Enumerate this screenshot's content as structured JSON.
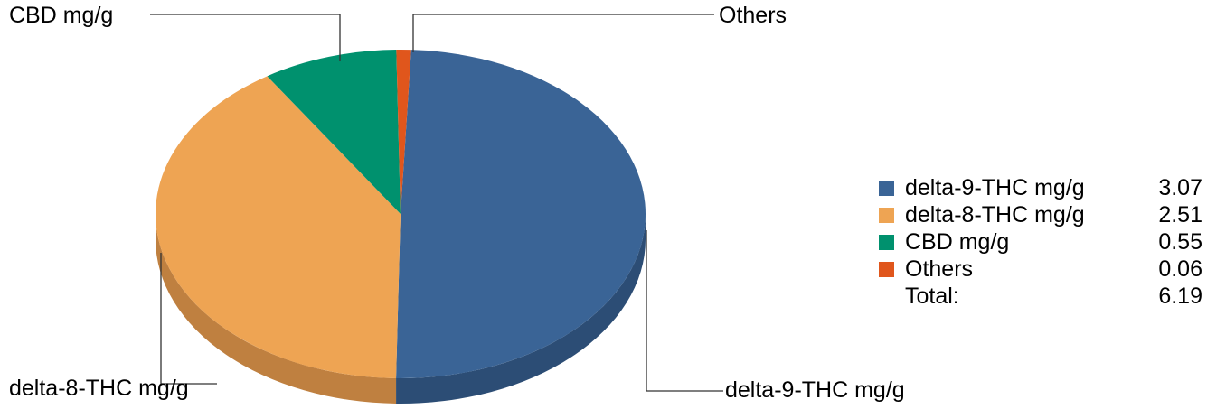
{
  "chart_data": {
    "type": "pie",
    "style": "3d-tilted",
    "title": "",
    "slices": [
      {
        "label": "delta-9-THC mg/g",
        "value": 3.07,
        "color": "#3A6496",
        "side_color": "#2C4D75"
      },
      {
        "label": "delta-8-THC mg/g",
        "value": 2.51,
        "color": "#EEA453",
        "side_color": "#BF8040"
      },
      {
        "label": "CBD mg/g",
        "value": 0.55,
        "color": "#00916E",
        "side_color": "#007257"
      },
      {
        "label": "Others",
        "value": 0.06,
        "color": "#E0561C",
        "side_color": "#B04416"
      }
    ],
    "legend": {
      "placement": "right",
      "rows": [
        {
          "label": "delta-9-THC mg/g",
          "value": "3.07",
          "color": "#3A6496"
        },
        {
          "label": "delta-8-THC mg/g",
          "value": "2.51",
          "color": "#EEA453"
        },
        {
          "label": "CBD mg/g",
          "value": "0.55",
          "color": "#00916E"
        },
        {
          "label": "Others",
          "value": "0.06",
          "color": "#E0561C"
        }
      ],
      "total_label": "Total:",
      "total_value": "6.19"
    },
    "callouts": {
      "cbd": "CBD mg/g",
      "others": "Others",
      "delta8": "delta-8-THC mg/g",
      "delta9": "delta-9-THC mg/g"
    }
  }
}
